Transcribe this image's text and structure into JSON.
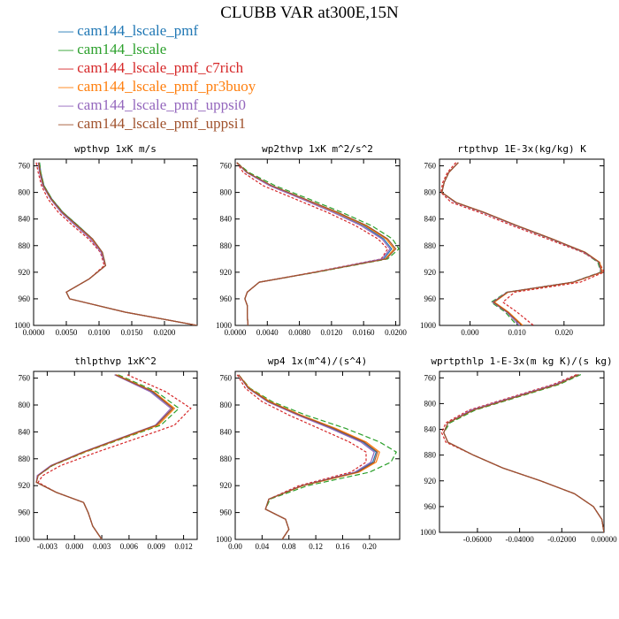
{
  "figure_title": "CLUBB VAR at300E,15N",
  "legend": {
    "marker": "—",
    "items": [
      {
        "name": "cam144_lscale_pmf",
        "color": "#1f77b4"
      },
      {
        "name": "cam144_lscale",
        "color": "#2ca02c"
      },
      {
        "name": "cam144_lscale_pmf_c7rich",
        "color": "#d62728"
      },
      {
        "name": "cam144_lscale_pmf_pr3buoy",
        "color": "#ff7f0e"
      },
      {
        "name": "cam144_lscale_pmf_uppsi0",
        "color": "#9467bd"
      },
      {
        "name": "cam144_lscale_pmf_uppsi1",
        "color": "#a0522d"
      }
    ]
  },
  "chart_data": [
    {
      "type": "line",
      "title": "wpthvp  1xK m/s",
      "xlim": [
        0,
        0.025
      ],
      "ylim": [
        1000,
        750
      ],
      "xticks": [
        "0.0000",
        "0.0050",
        "0.0100",
        "0.0150",
        "0.0200"
      ],
      "xtick_values": [
        0,
        0.005,
        0.01,
        0.015,
        0.02
      ],
      "yticks": [
        "760",
        "800",
        "840",
        "880",
        "920",
        "960",
        "1000"
      ],
      "ytick_values": [
        760,
        800,
        840,
        880,
        920,
        960,
        1000
      ],
      "y": [
        755,
        770,
        790,
        810,
        830,
        850,
        870,
        890,
        910,
        930,
        950,
        960,
        980,
        1000
      ],
      "series": [
        {
          "values": [
            0.0009,
            0.0011,
            0.0016,
            0.0028,
            0.0045,
            0.0068,
            0.009,
            0.0105,
            0.011,
            0.0085,
            0.005,
            0.0055,
            0.014,
            0.025
          ]
        },
        {
          "values": [
            0.0009,
            0.0011,
            0.0016,
            0.0028,
            0.0045,
            0.0068,
            0.009,
            0.0105,
            0.011,
            0.0085,
            0.005,
            0.0055,
            0.014,
            0.025
          ]
        },
        {
          "values": [
            0.0004,
            0.0007,
            0.0012,
            0.0022,
            0.0038,
            0.006,
            0.0084,
            0.0102,
            0.0108,
            0.0085,
            0.005,
            0.0055,
            0.014,
            0.025
          ]
        },
        {
          "values": [
            0.0008,
            0.001,
            0.0015,
            0.0027,
            0.0044,
            0.0066,
            0.0089,
            0.0104,
            0.011,
            0.0085,
            0.005,
            0.0055,
            0.014,
            0.025
          ]
        },
        {
          "values": [
            0.0007,
            0.0009,
            0.0014,
            0.0026,
            0.0042,
            0.0064,
            0.0087,
            0.0103,
            0.011,
            0.0085,
            0.005,
            0.0055,
            0.014,
            0.025
          ]
        },
        {
          "values": [
            0.0008,
            0.001,
            0.0015,
            0.0027,
            0.0044,
            0.0067,
            0.009,
            0.0105,
            0.011,
            0.0085,
            0.005,
            0.0055,
            0.014,
            0.025
          ]
        }
      ]
    },
    {
      "type": "line",
      "title": "wp2thvp  1xK m^2/s^2",
      "xlim": [
        0,
        0.0205
      ],
      "ylim": [
        1000,
        750
      ],
      "xticks": [
        "0.0000",
        "0.0040",
        "0.0080",
        "0.0120",
        "0.0160",
        "0.0200"
      ],
      "xtick_values": [
        0,
        0.004,
        0.008,
        0.012,
        0.016,
        0.02
      ],
      "yticks": [
        "760",
        "800",
        "840",
        "880",
        "920",
        "960",
        "1000"
      ],
      "ytick_values": [
        760,
        800,
        840,
        880,
        920,
        960,
        1000
      ],
      "y": [
        755,
        770,
        790,
        810,
        830,
        850,
        870,
        885,
        900,
        920,
        935,
        950,
        960,
        970,
        985,
        1000
      ],
      "series": [
        {
          "values": [
            0.0002,
            0.0015,
            0.0045,
            0.0085,
            0.0125,
            0.016,
            0.0185,
            0.0195,
            0.0185,
            0.01,
            0.003,
            0.0015,
            0.0012,
            0.0015,
            0.0015,
            0.0016
          ]
        },
        {
          "values": [
            0.0002,
            0.0017,
            0.005,
            0.0092,
            0.0133,
            0.017,
            0.0196,
            0.0204,
            0.019,
            0.0102,
            0.003,
            0.0015,
            0.0012,
            0.0015,
            0.0015,
            0.0016
          ]
        },
        {
          "values": [
            0.0002,
            0.001,
            0.0035,
            0.0075,
            0.0115,
            0.015,
            0.0178,
            0.019,
            0.0182,
            0.0098,
            0.003,
            0.0015,
            0.0012,
            0.0015,
            0.0015,
            0.0016
          ]
        },
        {
          "values": [
            0.0002,
            0.0015,
            0.0045,
            0.0086,
            0.0126,
            0.0162,
            0.0188,
            0.0198,
            0.0187,
            0.01,
            0.003,
            0.0015,
            0.0012,
            0.0015,
            0.0015,
            0.0016
          ]
        },
        {
          "values": [
            0.0002,
            0.0014,
            0.0043,
            0.0083,
            0.0122,
            0.0157,
            0.0183,
            0.0193,
            0.0183,
            0.01,
            0.003,
            0.0015,
            0.0012,
            0.0015,
            0.0015,
            0.0016
          ]
        },
        {
          "values": [
            0.0002,
            0.0015,
            0.0046,
            0.0087,
            0.0128,
            0.0164,
            0.019,
            0.02,
            0.0188,
            0.01,
            0.003,
            0.0015,
            0.0012,
            0.0015,
            0.0015,
            0.0016
          ]
        }
      ]
    },
    {
      "type": "line",
      "title": "rtpthvp  1E-3x(kg/kg) K",
      "xlim": [
        -0.0065,
        0.0285
      ],
      "ylim": [
        1000,
        750
      ],
      "xticks": [
        "0.000",
        "0.010",
        "0.020"
      ],
      "xtick_values": [
        0,
        0.01,
        0.02
      ],
      "yticks": [
        "760",
        "800",
        "840",
        "880",
        "920",
        "960",
        "1000"
      ],
      "ytick_values": [
        760,
        800,
        840,
        880,
        920,
        960,
        1000
      ],
      "y": [
        755,
        770,
        785,
        800,
        815,
        830,
        850,
        870,
        890,
        905,
        920,
        935,
        950,
        965,
        980,
        1000
      ],
      "series": [
        {
          "values": [
            -0.0025,
            -0.0045,
            -0.0055,
            -0.006,
            -0.003,
            0.003,
            0.01,
            0.0175,
            0.0245,
            0.0275,
            0.028,
            0.022,
            0.008,
            0.005,
            0.008,
            0.011
          ]
        },
        {
          "values": [
            -0.0025,
            -0.0045,
            -0.0055,
            -0.006,
            -0.003,
            0.0028,
            0.0098,
            0.0172,
            0.0242,
            0.0272,
            0.0278,
            0.0218,
            0.0078,
            0.0045,
            0.0075,
            0.01
          ]
        },
        {
          "values": [
            -0.003,
            -0.0048,
            -0.0058,
            -0.0062,
            -0.004,
            0.002,
            0.009,
            0.0165,
            0.024,
            0.0275,
            0.0285,
            0.0235,
            0.0095,
            0.007,
            0.01,
            0.0135
          ]
        },
        {
          "values": [
            -0.0025,
            -0.0045,
            -0.0055,
            -0.006,
            -0.003,
            0.003,
            0.01,
            0.0175,
            0.0245,
            0.0276,
            0.0281,
            0.0221,
            0.0081,
            0.0052,
            0.0082,
            0.0112
          ]
        },
        {
          "values": [
            -0.0025,
            -0.0045,
            -0.0055,
            -0.006,
            -0.0032,
            0.0028,
            0.0098,
            0.0173,
            0.0243,
            0.0274,
            0.0279,
            0.0219,
            0.0079,
            0.0048,
            0.0078,
            0.0105
          ]
        },
        {
          "values": [
            -0.0025,
            -0.0045,
            -0.0055,
            -0.006,
            -0.003,
            0.003,
            0.01,
            0.0175,
            0.0245,
            0.0275,
            0.028,
            0.022,
            0.008,
            0.005,
            0.008,
            0.011
          ]
        }
      ]
    },
    {
      "type": "line",
      "title": "thlpthvp  1xK^2",
      "xlim": [
        -0.0045,
        0.0135
      ],
      "ylim": [
        1000,
        750
      ],
      "xticks": [
        "-0.003",
        "0.000",
        "0.003",
        "0.006",
        "0.009",
        "0.012"
      ],
      "xtick_values": [
        -0.003,
        0,
        0.003,
        0.006,
        0.009,
        0.012
      ],
      "yticks": [
        "760",
        "800",
        "840",
        "880",
        "920",
        "960",
        "1000"
      ],
      "ytick_values": [
        760,
        800,
        840,
        880,
        920,
        960,
        1000
      ],
      "y": [
        755,
        780,
        805,
        830,
        850,
        870,
        890,
        905,
        915,
        930,
        945,
        960,
        980,
        1000
      ],
      "series": [
        {
          "values": [
            0.0045,
            0.0085,
            0.0108,
            0.009,
            0.005,
            0.001,
            -0.0025,
            -0.004,
            -0.0042,
            -0.002,
            0.001,
            0.0015,
            0.002,
            0.003
          ]
        },
        {
          "values": [
            0.0048,
            0.009,
            0.0115,
            0.0095,
            0.0053,
            0.0012,
            -0.0024,
            -0.004,
            -0.0042,
            -0.002,
            0.001,
            0.0015,
            0.002,
            0.003
          ]
        },
        {
          "values": [
            0.0058,
            0.01,
            0.0128,
            0.011,
            0.0068,
            0.0025,
            -0.0015,
            -0.0035,
            -0.004,
            -0.002,
            0.001,
            0.0015,
            0.002,
            0.003
          ]
        },
        {
          "values": [
            0.0046,
            0.0087,
            0.011,
            0.0092,
            0.0051,
            0.0011,
            -0.0025,
            -0.004,
            -0.0042,
            -0.002,
            0.001,
            0.0015,
            0.002,
            0.003
          ]
        },
        {
          "values": [
            0.0044,
            0.0083,
            0.0106,
            0.0089,
            0.0049,
            0.0009,
            -0.0026,
            -0.0041,
            -0.0042,
            -0.002,
            0.001,
            0.0015,
            0.002,
            0.003
          ]
        },
        {
          "values": [
            0.0045,
            0.0086,
            0.0108,
            0.009,
            0.005,
            0.001,
            -0.0025,
            -0.004,
            -0.0042,
            -0.002,
            0.001,
            0.0015,
            0.002,
            0.003
          ]
        }
      ]
    },
    {
      "type": "line",
      "title": "wp4  1x(m^4)/(s^4)",
      "xlim": [
        0,
        0.245
      ],
      "ylim": [
        1000,
        750
      ],
      "xticks": [
        "0.00",
        "0.04",
        "0.08",
        "0.12",
        "0.16",
        "0.20"
      ],
      "xtick_values": [
        0,
        0.04,
        0.08,
        0.12,
        0.16,
        0.2
      ],
      "yticks": [
        "760",
        "800",
        "840",
        "880",
        "920",
        "960",
        "1000"
      ],
      "ytick_values": [
        760,
        800,
        840,
        880,
        920,
        960,
        1000
      ],
      "y": [
        755,
        775,
        795,
        815,
        835,
        855,
        870,
        885,
        900,
        920,
        940,
        955,
        970,
        985,
        1000
      ],
      "series": [
        {
          "values": [
            0.005,
            0.02,
            0.05,
            0.095,
            0.145,
            0.19,
            0.21,
            0.205,
            0.18,
            0.1,
            0.05,
            0.045,
            0.075,
            0.08,
            0.07
          ]
        },
        {
          "values": [
            0.005,
            0.022,
            0.055,
            0.105,
            0.165,
            0.215,
            0.24,
            0.232,
            0.2,
            0.108,
            0.052,
            0.045,
            0.075,
            0.08,
            0.07
          ]
        },
        {
          "values": [
            0.003,
            0.015,
            0.04,
            0.08,
            0.125,
            0.17,
            0.195,
            0.195,
            0.172,
            0.095,
            0.05,
            0.045,
            0.075,
            0.08,
            0.07
          ]
        },
        {
          "values": [
            0.005,
            0.021,
            0.052,
            0.098,
            0.15,
            0.195,
            0.215,
            0.21,
            0.184,
            0.101,
            0.05,
            0.045,
            0.075,
            0.08,
            0.07
          ]
        },
        {
          "values": [
            0.005,
            0.019,
            0.048,
            0.093,
            0.142,
            0.187,
            0.207,
            0.202,
            0.178,
            0.099,
            0.05,
            0.045,
            0.075,
            0.08,
            0.07
          ]
        },
        {
          "values": [
            0.005,
            0.02,
            0.05,
            0.096,
            0.147,
            0.192,
            0.212,
            0.207,
            0.182,
            0.1,
            0.05,
            0.045,
            0.075,
            0.08,
            0.07
          ]
        }
      ]
    },
    {
      "type": "line",
      "title": "wprtpthlp  1-E-3x(m kg K)/(s kg)",
      "xlim": [
        -0.078,
        0.0
      ],
      "ylim": [
        1000,
        750
      ],
      "xticks": [
        "-0.06000",
        "-0.04000",
        "-0.02000",
        "0.00000"
      ],
      "xtick_values": [
        -0.06,
        -0.04,
        -0.02,
        0
      ],
      "yticks": [
        "760",
        "800",
        "840",
        "880",
        "920",
        "960",
        "1000"
      ],
      "ytick_values": [
        760,
        800,
        840,
        880,
        920,
        960,
        1000
      ],
      "y": [
        755,
        770,
        790,
        810,
        830,
        845,
        860,
        880,
        900,
        920,
        940,
        960,
        980,
        1000
      ],
      "series": [
        {
          "values": [
            -0.012,
            -0.022,
            -0.042,
            -0.062,
            -0.074,
            -0.076,
            -0.074,
            -0.062,
            -0.048,
            -0.03,
            -0.014,
            -0.005,
            -0.001,
            0.0
          ]
        },
        {
          "values": [
            -0.011,
            -0.021,
            -0.041,
            -0.061,
            -0.073,
            -0.076,
            -0.074,
            -0.062,
            -0.048,
            -0.03,
            -0.014,
            -0.005,
            -0.001,
            0.0
          ]
        },
        {
          "values": [
            -0.013,
            -0.024,
            -0.044,
            -0.064,
            -0.075,
            -0.077,
            -0.075,
            -0.062,
            -0.048,
            -0.03,
            -0.014,
            -0.005,
            -0.001,
            0.0
          ]
        },
        {
          "values": [
            -0.012,
            -0.022,
            -0.042,
            -0.062,
            -0.074,
            -0.076,
            -0.074,
            -0.062,
            -0.048,
            -0.03,
            -0.014,
            -0.005,
            -0.001,
            0.0
          ]
        },
        {
          "values": [
            -0.012,
            -0.023,
            -0.043,
            -0.063,
            -0.074,
            -0.076,
            -0.074,
            -0.062,
            -0.048,
            -0.03,
            -0.014,
            -0.005,
            -0.001,
            0.0
          ]
        },
        {
          "values": [
            -0.012,
            -0.022,
            -0.042,
            -0.062,
            -0.074,
            -0.076,
            -0.074,
            -0.062,
            -0.048,
            -0.03,
            -0.014,
            -0.005,
            -0.001,
            0.0
          ]
        }
      ]
    }
  ]
}
